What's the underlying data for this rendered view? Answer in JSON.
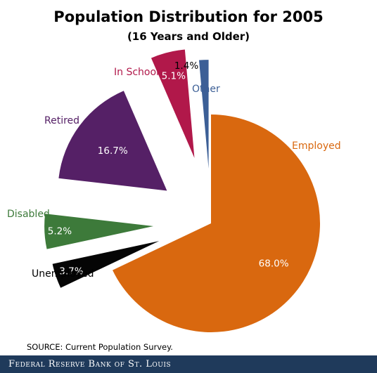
{
  "chart_data": {
    "type": "pie",
    "title": "Population Distribution for 2005",
    "subtitle": "(16 Years and Older)",
    "slices": [
      {
        "label": "Employed",
        "value": 68.0,
        "value_text": "68.0%",
        "color": "#d9680f",
        "label_color": "#d9680f"
      },
      {
        "label": "Unemployed",
        "value": 3.7,
        "value_text": "3.7%",
        "color": "#050505",
        "label_color": "#000000"
      },
      {
        "label": "Disabled",
        "value": 5.2,
        "value_text": "5.2%",
        "color": "#3d7a3a",
        "label_color": "#3d7a3a"
      },
      {
        "label": "Retired",
        "value": 16.7,
        "value_text": "16.7%",
        "color": "#552066",
        "label_color": "#552066"
      },
      {
        "label": "In School",
        "value": 5.1,
        "value_text": "5.1%",
        "color": "#b1184a",
        "label_color": "#b1184a"
      },
      {
        "label": "Other",
        "value": 1.4,
        "value_text": "1.4%",
        "color": "#3c5f96",
        "label_color": "#3c5f96"
      }
    ]
  },
  "source": "SOURCE: Current Population Survey.",
  "footer": "Federal Reserve Bank of St. Louis"
}
